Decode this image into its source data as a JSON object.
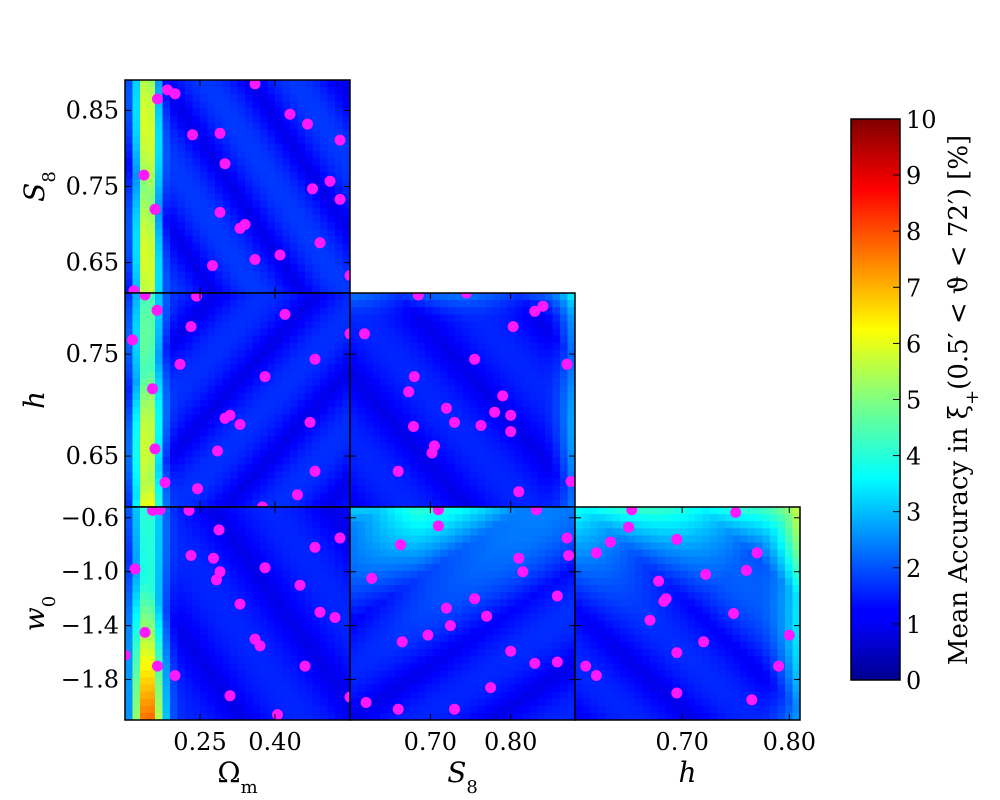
{
  "chart_data": [
    {
      "type": "heatmap",
      "panel": "S8-vs-Omega_m",
      "x_param": "Omega_m",
      "y_param": "S8",
      "xlim": [
        0.1,
        0.55
      ],
      "ylim": [
        0.61,
        0.89
      ],
      "x_ticks": [
        0.25,
        0.4
      ],
      "y_ticks": [
        0.65,
        0.75,
        0.85
      ],
      "x_tick_labels": [],
      "y_tick_labels": [
        "0.65",
        "0.75",
        "0.85"
      ],
      "xlabel": "",
      "ylabel": "S8",
      "points": [
        [
          0.36,
          0.885
        ],
        [
          0.165,
          0.865
        ],
        [
          0.185,
          0.877
        ],
        [
          0.2,
          0.872
        ],
        [
          0.235,
          0.818
        ],
        [
          0.29,
          0.82
        ],
        [
          0.43,
          0.845
        ],
        [
          0.465,
          0.832
        ],
        [
          0.53,
          0.811
        ],
        [
          0.138,
          0.765
        ],
        [
          0.3,
          0.78
        ],
        [
          0.16,
          0.72
        ],
        [
          0.29,
          0.716
        ],
        [
          0.475,
          0.747
        ],
        [
          0.51,
          0.757
        ],
        [
          0.53,
          0.733
        ],
        [
          0.33,
          0.695
        ],
        [
          0.34,
          0.7
        ],
        [
          0.41,
          0.66
        ],
        [
          0.49,
          0.676
        ],
        [
          0.275,
          0.646
        ],
        [
          0.36,
          0.654
        ],
        [
          0.55,
          0.633
        ],
        [
          0.118,
          0.613
        ]
      ]
    },
    {
      "type": "heatmap",
      "panel": "h-vs-Omega_m",
      "x_param": "Omega_m",
      "y_param": "h",
      "xlim": [
        0.1,
        0.55
      ],
      "ylim": [
        0.6,
        0.81
      ],
      "x_ticks": [
        0.25,
        0.4
      ],
      "y_ticks": [
        0.65,
        0.75
      ],
      "x_tick_labels": [],
      "y_tick_labels": [
        "0.65",
        "0.75"
      ],
      "xlabel": "",
      "ylabel": "h",
      "points": [
        [
          0.14,
          0.808
        ],
        [
          0.243,
          0.807
        ],
        [
          0.164,
          0.793
        ],
        [
          0.232,
          0.777
        ],
        [
          0.42,
          0.789
        ],
        [
          0.115,
          0.764
        ],
        [
          0.21,
          0.74
        ],
        [
          0.38,
          0.728
        ],
        [
          0.48,
          0.745
        ],
        [
          0.55,
          0.77
        ],
        [
          0.155,
          0.716
        ],
        [
          0.31,
          0.69
        ],
        [
          0.3,
          0.687
        ],
        [
          0.33,
          0.681
        ],
        [
          0.285,
          0.655
        ],
        [
          0.16,
          0.657
        ],
        [
          0.47,
          0.683
        ],
        [
          0.48,
          0.635
        ],
        [
          0.18,
          0.624
        ],
        [
          0.245,
          0.618
        ],
        [
          0.375,
          0.6
        ],
        [
          0.445,
          0.612
        ]
      ]
    },
    {
      "type": "heatmap",
      "panel": "w0-vs-Omega_m",
      "x_param": "Omega_m",
      "y_param": "w0",
      "xlim": [
        0.1,
        0.55
      ],
      "ylim": [
        -2.1,
        -0.52
      ],
      "x_ticks": [
        0.25,
        0.4
      ],
      "y_ticks": [
        -1.8,
        -1.4,
        -1.0,
        -0.6
      ],
      "x_tick_labels": [
        "0.25",
        "0.40"
      ],
      "y_tick_labels": [
        "−1.8",
        "−1.4",
        "−1.0",
        "−0.6"
      ],
      "xlabel": "Ωm",
      "ylabel": "w0",
      "points": [
        [
          0.155,
          -0.545
        ],
        [
          0.17,
          -0.54
        ],
        [
          0.228,
          -0.545
        ],
        [
          0.288,
          -0.69
        ],
        [
          0.53,
          -0.75
        ],
        [
          0.48,
          -0.82
        ],
        [
          0.232,
          -0.88
        ],
        [
          0.277,
          -0.9
        ],
        [
          0.12,
          -0.98
        ],
        [
          0.29,
          -1.0
        ],
        [
          0.38,
          -0.97
        ],
        [
          0.283,
          -1.06
        ],
        [
          0.45,
          -1.1
        ],
        [
          0.33,
          -1.24
        ],
        [
          0.49,
          -1.3
        ],
        [
          0.52,
          -1.34
        ],
        [
          0.14,
          -1.45
        ],
        [
          0.36,
          -1.5
        ],
        [
          0.37,
          -1.55
        ],
        [
          0.1,
          -1.62
        ],
        [
          0.165,
          -1.7
        ],
        [
          0.2,
          -1.77
        ],
        [
          0.46,
          -1.7
        ],
        [
          0.31,
          -1.92
        ],
        [
          0.405,
          -2.06
        ],
        [
          0.55,
          -1.93
        ]
      ]
    },
    {
      "type": "heatmap",
      "panel": "h-vs-S8",
      "x_param": "S8",
      "y_param": "h",
      "xlim": [
        0.6,
        0.88
      ],
      "ylim": [
        0.6,
        0.81
      ],
      "x_ticks": [
        0.7,
        0.8
      ],
      "y_ticks": [
        0.65,
        0.75
      ],
      "x_tick_labels": [],
      "y_tick_labels": [],
      "xlabel": "",
      "ylabel": "",
      "points": [
        [
          0.685,
          0.808
        ],
        [
          0.745,
          0.81
        ],
        [
          0.84,
          0.797
        ],
        [
          0.83,
          0.792
        ],
        [
          0.803,
          0.777
        ],
        [
          0.618,
          0.77
        ],
        [
          0.755,
          0.745
        ],
        [
          0.87,
          0.74
        ],
        [
          0.68,
          0.728
        ],
        [
          0.673,
          0.713
        ],
        [
          0.72,
          0.697
        ],
        [
          0.78,
          0.693
        ],
        [
          0.79,
          0.709
        ],
        [
          0.8,
          0.69
        ],
        [
          0.73,
          0.683
        ],
        [
          0.679,
          0.679
        ],
        [
          0.705,
          0.66
        ],
        [
          0.702,
          0.653
        ],
        [
          0.763,
          0.68
        ],
        [
          0.8,
          0.674
        ],
        [
          0.66,
          0.635
        ],
        [
          0.81,
          0.615
        ],
        [
          0.875,
          0.625
        ]
      ]
    },
    {
      "type": "heatmap",
      "panel": "w0-vs-S8",
      "x_param": "S8",
      "y_param": "w0",
      "xlim": [
        0.6,
        0.88
      ],
      "ylim": [
        -2.1,
        -0.52
      ],
      "x_ticks": [
        0.7,
        0.8
      ],
      "y_ticks": [
        -1.8,
        -1.4,
        -1.0,
        -0.6
      ],
      "x_tick_labels": [
        "0.70",
        "0.80"
      ],
      "y_tick_labels": [],
      "xlabel": "S8",
      "ylabel": "",
      "points": [
        [
          0.71,
          -0.54
        ],
        [
          0.832,
          -0.54
        ],
        [
          0.71,
          -0.66
        ],
        [
          0.87,
          -0.75
        ],
        [
          0.663,
          -0.8
        ],
        [
          0.872,
          -0.88
        ],
        [
          0.81,
          -0.9
        ],
        [
          0.627,
          -1.05
        ],
        [
          0.815,
          -1.0
        ],
        [
          0.892,
          -0.99
        ],
        [
          0.755,
          -1.2
        ],
        [
          0.77,
          -1.33
        ],
        [
          0.72,
          -1.27
        ],
        [
          0.725,
          -1.4
        ],
        [
          0.858,
          -1.18
        ],
        [
          0.665,
          -1.52
        ],
        [
          0.697,
          -1.47
        ],
        [
          0.8,
          -1.59
        ],
        [
          0.83,
          -1.68
        ],
        [
          0.858,
          -1.67
        ],
        [
          0.775,
          -1.86
        ],
        [
          0.62,
          -1.97
        ],
        [
          0.66,
          -2.02
        ],
        [
          0.73,
          -2.02
        ]
      ]
    },
    {
      "type": "heatmap",
      "panel": "w0-vs-h",
      "x_param": "h",
      "y_param": "w0",
      "xlim": [
        0.6,
        0.81
      ],
      "ylim": [
        -2.1,
        -0.52
      ],
      "x_ticks": [
        0.7,
        0.8
      ],
      "y_ticks": [
        -1.8,
        -1.4,
        -1.0,
        -0.6
      ],
      "x_tick_labels": [
        "0.70",
        "0.80"
      ],
      "y_tick_labels": [],
      "xlabel": "h",
      "ylabel": "",
      "points": [
        [
          0.653,
          -0.54
        ],
        [
          0.75,
          -0.56
        ],
        [
          0.65,
          -0.67
        ],
        [
          0.633,
          -0.78
        ],
        [
          0.62,
          -0.86
        ],
        [
          0.695,
          -0.76
        ],
        [
          0.77,
          -0.86
        ],
        [
          0.678,
          -1.07
        ],
        [
          0.76,
          -0.99
        ],
        [
          0.722,
          -1.02
        ],
        [
          0.683,
          -1.22
        ],
        [
          0.685,
          -1.2
        ],
        [
          0.67,
          -1.36
        ],
        [
          0.748,
          -1.31
        ],
        [
          0.8,
          -1.47
        ],
        [
          0.695,
          -1.6
        ],
        [
          0.72,
          -1.52
        ],
        [
          0.61,
          -1.7
        ],
        [
          0.62,
          -1.77
        ],
        [
          0.79,
          -1.7
        ],
        [
          0.695,
          -1.9
        ],
        [
          0.765,
          -1.95
        ]
      ]
    }
  ],
  "colorbar": {
    "label": "Mean Accuracy in ξ+(0.5′ < ϑ < 72′) [%]",
    "label_parts": {
      "pre": "Mean Accuracy in ξ",
      "sub": "+",
      "post": "(0.5′ < ϑ < 72′) [%]"
    },
    "range": [
      0,
      10
    ],
    "ticks": [
      "0",
      "1",
      "2",
      "3",
      "4",
      "5",
      "6",
      "7",
      "8",
      "9",
      "10"
    ],
    "colormap": "jet"
  },
  "colors": {
    "point": "#ff19ff",
    "background_low": "#00008f",
    "axes": "#000000"
  }
}
